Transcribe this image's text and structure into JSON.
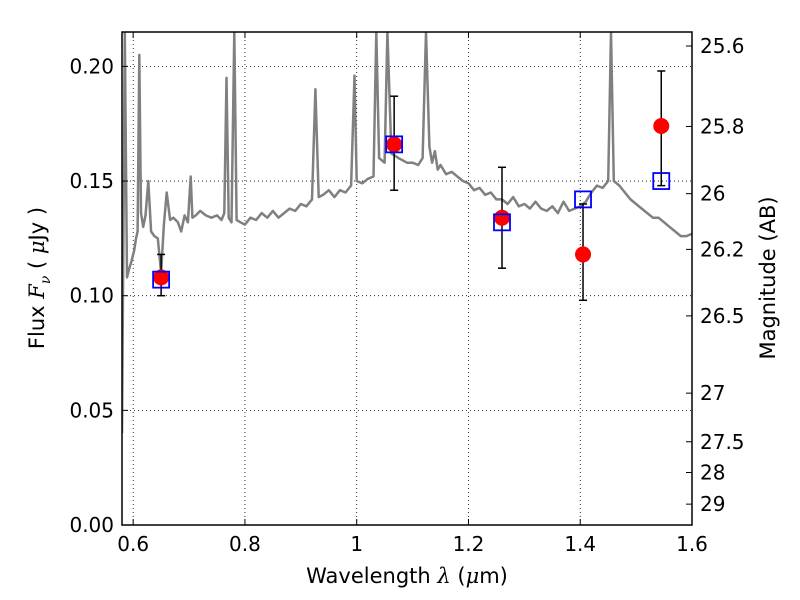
{
  "chart_data": {
    "type": "scatter",
    "xlabel": {
      "prefix": "Wavelength  ",
      "symbol": "λ",
      "suffix": " (",
      "unit_symbol": "μ",
      "unit": "m)"
    },
    "ylabel": {
      "prefix": "Flux  ",
      "symbol": "F",
      "subscript": "ν",
      "suffix": "  ( ",
      "unit_symbol": "μ",
      "unit": "Jy )"
    },
    "y2label": "Magnitude (AB)",
    "xlim": [
      0.58,
      1.6
    ],
    "ylim": [
      0.0,
      0.215
    ],
    "grid": true,
    "x_ticks": [
      {
        "value": 0.6,
        "label": "0.6"
      },
      {
        "value": 0.8,
        "label": "0.8"
      },
      {
        "value": 1.0,
        "label": "1"
      },
      {
        "value": 1.2,
        "label": "1.2"
      },
      {
        "value": 1.4,
        "label": "1.4"
      },
      {
        "value": 1.6,
        "label": "1.6"
      }
    ],
    "y_ticks": [
      {
        "value": 0.0,
        "label": "0.00"
      },
      {
        "value": 0.05,
        "label": "0.05"
      },
      {
        "value": 0.1,
        "label": "0.10"
      },
      {
        "value": 0.15,
        "label": "0.15"
      },
      {
        "value": 0.2,
        "label": "0.20"
      }
    ],
    "y2_ticks": [
      {
        "label": "25.6",
        "flux": 0.2089
      },
      {
        "label": "25.8",
        "flux": 0.1738
      },
      {
        "label": "26",
        "flux": 0.1445
      },
      {
        "label": "26.2",
        "flux": 0.1202
      },
      {
        "label": "26.5",
        "flux": 0.0912
      },
      {
        "label": "27",
        "flux": 0.0575
      },
      {
        "label": "27.5",
        "flux": 0.0363
      },
      {
        "label": "28",
        "flux": 0.0229
      },
      {
        "label": "29",
        "flux": 0.0091
      }
    ],
    "series": [
      {
        "kind": "line",
        "color": "#808080",
        "points": [
          [
            0.58,
            0.04
          ],
          [
            0.585,
            0.215
          ],
          [
            0.589,
            0.108
          ],
          [
            0.593,
            0.112
          ],
          [
            0.597,
            0.115
          ],
          [
            0.602,
            0.12
          ],
          [
            0.605,
            0.125
          ],
          [
            0.608,
            0.128
          ],
          [
            0.611,
            0.205
          ],
          [
            0.614,
            0.136
          ],
          [
            0.618,
            0.13
          ],
          [
            0.622,
            0.135
          ],
          [
            0.627,
            0.15
          ],
          [
            0.632,
            0.128
          ],
          [
            0.638,
            0.126
          ],
          [
            0.644,
            0.125
          ],
          [
            0.65,
            0.11
          ],
          [
            0.655,
            0.131
          ],
          [
            0.66,
            0.145
          ],
          [
            0.666,
            0.133
          ],
          [
            0.672,
            0.134
          ],
          [
            0.68,
            0.132
          ],
          [
            0.686,
            0.128
          ],
          [
            0.692,
            0.135
          ],
          [
            0.698,
            0.132
          ],
          [
            0.703,
            0.152
          ],
          [
            0.706,
            0.134
          ],
          [
            0.712,
            0.135
          ],
          [
            0.72,
            0.137
          ],
          [
            0.73,
            0.135
          ],
          [
            0.74,
            0.134
          ],
          [
            0.75,
            0.135
          ],
          [
            0.758,
            0.133
          ],
          [
            0.763,
            0.136
          ],
          [
            0.767,
            0.195
          ],
          [
            0.771,
            0.134
          ],
          [
            0.776,
            0.132
          ],
          [
            0.781,
            0.215
          ],
          [
            0.785,
            0.133
          ],
          [
            0.792,
            0.132
          ],
          [
            0.8,
            0.131
          ],
          [
            0.81,
            0.134
          ],
          [
            0.82,
            0.133
          ],
          [
            0.83,
            0.136
          ],
          [
            0.84,
            0.134
          ],
          [
            0.85,
            0.137
          ],
          [
            0.86,
            0.134
          ],
          [
            0.87,
            0.136
          ],
          [
            0.88,
            0.138
          ],
          [
            0.89,
            0.137
          ],
          [
            0.9,
            0.14
          ],
          [
            0.91,
            0.139
          ],
          [
            0.92,
            0.142
          ],
          [
            0.926,
            0.19
          ],
          [
            0.932,
            0.143
          ],
          [
            0.94,
            0.144
          ],
          [
            0.95,
            0.146
          ],
          [
            0.96,
            0.143
          ],
          [
            0.97,
            0.146
          ],
          [
            0.98,
            0.145
          ],
          [
            0.99,
            0.148
          ],
          [
            0.996,
            0.196
          ],
          [
            1.0,
            0.15
          ],
          [
            1.01,
            0.149
          ],
          [
            1.02,
            0.151
          ],
          [
            1.03,
            0.152
          ],
          [
            1.035,
            0.215
          ],
          [
            1.04,
            0.16
          ],
          [
            1.05,
            0.158
          ],
          [
            1.055,
            0.215
          ],
          [
            1.062,
            0.162
          ],
          [
            1.075,
            0.16
          ],
          [
            1.09,
            0.158
          ],
          [
            1.1,
            0.158
          ],
          [
            1.11,
            0.157
          ],
          [
            1.118,
            0.16
          ],
          [
            1.124,
            0.215
          ],
          [
            1.13,
            0.165
          ],
          [
            1.135,
            0.158
          ],
          [
            1.14,
            0.163
          ],
          [
            1.145,
            0.155
          ],
          [
            1.15,
            0.157
          ],
          [
            1.16,
            0.153
          ],
          [
            1.17,
            0.154
          ],
          [
            1.18,
            0.152
          ],
          [
            1.19,
            0.15
          ],
          [
            1.2,
            0.149
          ],
          [
            1.21,
            0.146
          ],
          [
            1.22,
            0.147
          ],
          [
            1.23,
            0.144
          ],
          [
            1.24,
            0.145
          ],
          [
            1.25,
            0.142
          ],
          [
            1.26,
            0.142
          ],
          [
            1.27,
            0.14
          ],
          [
            1.28,
            0.143
          ],
          [
            1.29,
            0.139
          ],
          [
            1.3,
            0.14
          ],
          [
            1.31,
            0.138
          ],
          [
            1.32,
            0.141
          ],
          [
            1.33,
            0.138
          ],
          [
            1.34,
            0.137
          ],
          [
            1.35,
            0.139
          ],
          [
            1.36,
            0.136
          ],
          [
            1.37,
            0.141
          ],
          [
            1.38,
            0.137
          ],
          [
            1.39,
            0.138
          ],
          [
            1.4,
            0.139
          ],
          [
            1.41,
            0.141
          ],
          [
            1.42,
            0.145
          ],
          [
            1.43,
            0.148
          ],
          [
            1.44,
            0.147
          ],
          [
            1.45,
            0.15
          ],
          [
            1.455,
            0.215
          ],
          [
            1.46,
            0.15
          ],
          [
            1.47,
            0.148
          ],
          [
            1.48,
            0.145
          ],
          [
            1.49,
            0.142
          ],
          [
            1.5,
            0.14
          ],
          [
            1.51,
            0.138
          ],
          [
            1.52,
            0.136
          ],
          [
            1.53,
            0.134
          ],
          [
            1.54,
            0.134
          ],
          [
            1.55,
            0.132
          ],
          [
            1.56,
            0.13
          ],
          [
            1.57,
            0.128
          ],
          [
            1.58,
            0.126
          ],
          [
            1.59,
            0.126
          ],
          [
            1.6,
            0.127
          ]
        ]
      },
      {
        "kind": "points",
        "marker": "circle",
        "color": "#ff0000",
        "points": [
          {
            "x": 0.65,
            "y": 0.108,
            "yerr_low": 0.1,
            "yerr_high": 0.118
          },
          {
            "x": 1.067,
            "y": 0.166,
            "yerr_low": 0.146,
            "yerr_high": 0.187
          },
          {
            "x": 1.26,
            "y": 0.134,
            "yerr_low": 0.112,
            "yerr_high": 0.156
          },
          {
            "x": 1.405,
            "y": 0.118,
            "yerr_low": 0.098,
            "yerr_high": 0.14
          },
          {
            "x": 1.545,
            "y": 0.174,
            "yerr_low": 0.148,
            "yerr_high": 0.198
          }
        ]
      },
      {
        "kind": "points",
        "marker": "square",
        "color": "#0000ff",
        "points": [
          {
            "x": 0.65,
            "y": 0.107
          },
          {
            "x": 1.067,
            "y": 0.166
          },
          {
            "x": 1.26,
            "y": 0.132
          },
          {
            "x": 1.405,
            "y": 0.142
          },
          {
            "x": 1.545,
            "y": 0.15
          }
        ]
      }
    ]
  }
}
